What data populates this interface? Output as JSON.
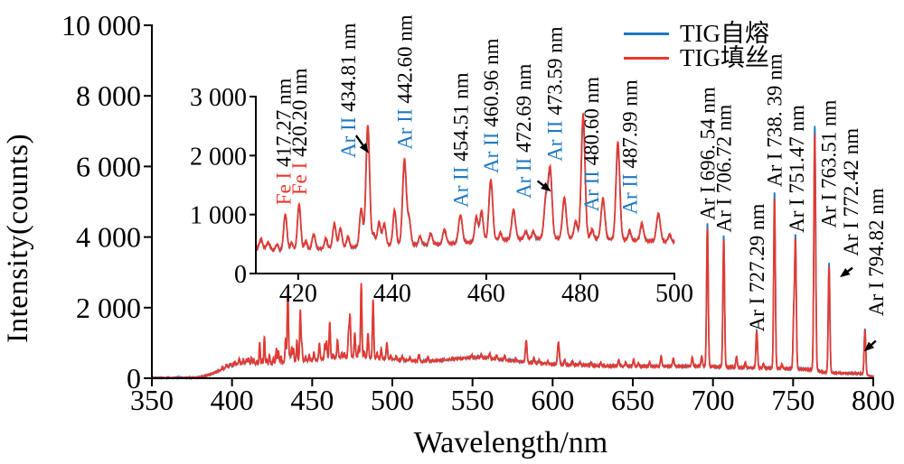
{
  "chart_data": {
    "type": "line",
    "title": "",
    "xlabel": "Wavelength/nm",
    "ylabel": "Intensity(counts)",
    "legend_position": "top-right",
    "grid": false,
    "series": [
      {
        "name": "TIG自熔",
        "color": "#1f78c1",
        "role": "blue"
      },
      {
        "name": "TIG填丝",
        "color": "#e8382e",
        "role": "red"
      }
    ],
    "main": {
      "xlim": [
        350,
        800
      ],
      "ylim": [
        0,
        10000
      ],
      "xticks": [
        350,
        400,
        450,
        500,
        550,
        600,
        650,
        700,
        750,
        800
      ],
      "xtick_labels": [
        "350",
        "400",
        "450",
        "500",
        "550",
        "600",
        "650",
        "700",
        "750",
        "800"
      ],
      "yticks": [
        0,
        2000,
        4000,
        6000,
        8000,
        10000
      ],
      "ytick_labels": [
        "0",
        "2 000",
        "4 000",
        "6 000",
        "8 000",
        "10 000"
      ],
      "annotations": [
        {
          "text": "Ar I 696. 54 nm",
          "x": 696.54,
          "dx": 0,
          "y": 4480
        },
        {
          "text": "Ar I 706.72 nm",
          "x": 706.72,
          "dx": 0,
          "y": 4130
        },
        {
          "text": "Ar I 727.29 nm",
          "x": 727.29,
          "dx": 0,
          "y": 1320
        },
        {
          "text": "Ar I 738. 39 nm",
          "x": 738.39,
          "dx": 0,
          "y": 5420
        },
        {
          "text": "Ar I 751.47 nm",
          "x": 751.47,
          "dx": 1,
          "y": 4120
        },
        {
          "text": "Ar I 763.51 nm",
          "x": 763.51,
          "dx": 15,
          "y": 4260
        },
        {
          "text": "Ar I 772.42 nm",
          "x": 772.42,
          "dx": 24,
          "y": 3460
        },
        {
          "text": "Ar I 794.82 nm",
          "x": 794.82,
          "dx": 12,
          "y": 1760
        }
      ],
      "arrows": [
        {
          "x": 772.42,
          "tail": [
            26,
            3130
          ],
          "head": [
            12,
            2860
          ]
        },
        {
          "x": 794.82,
          "tail": [
            12,
            1060
          ],
          "head": [
            -1,
            760
          ]
        }
      ]
    },
    "inset": {
      "xlim": [
        411,
        500
      ],
      "ylim": [
        0,
        3000
      ],
      "xticks": [
        420,
        440,
        460,
        480,
        500
      ],
      "xtick_labels": [
        "420",
        "440",
        "460",
        "480",
        "500"
      ],
      "yticks": [
        0,
        1000,
        2000,
        3000
      ],
      "ytick_labels": [
        "0",
        "1 000",
        "2 000",
        "3 000"
      ],
      "annotations": [
        {
          "element": "Fe I",
          "element_color": "#e8382e",
          "suffix": " 417.27 nm",
          "x": 417.27,
          "dx": -2,
          "y": 1160
        },
        {
          "element": "Fe I",
          "element_color": "#e8382e",
          "suffix": " 420.20 nm",
          "x": 420.2,
          "dx": 0,
          "y": 1330
        },
        {
          "element": "Ar II",
          "element_color": "#1f78c1",
          "suffix": " 434.81 nm",
          "x": 434.81,
          "dx": -22,
          "y": 1960
        },
        {
          "element": "Ar II",
          "element_color": "#1f78c1",
          "suffix": " 442.60 nm",
          "x": 442.6,
          "dx": 0,
          "y": 2100
        },
        {
          "element": "Ar II",
          "element_color": "#1f78c1",
          "suffix": " 454.51 nm",
          "x": 454.51,
          "dx": 0,
          "y": 1120
        },
        {
          "element": "Ar II",
          "element_color": "#1f78c1",
          "suffix": " 460.96 nm",
          "x": 460.96,
          "dx": 0,
          "y": 1700
        },
        {
          "element": "Ar II",
          "element_color": "#1f78c1",
          "suffix": " 472.69 nm",
          "x": 472.69,
          "dx": -25,
          "y": 1270
        },
        {
          "element": "Ar II",
          "element_color": "#1f78c1",
          "suffix": " 473.59 nm",
          "x": 473.59,
          "dx": 5,
          "y": 1900
        },
        {
          "element": "Ar II",
          "element_color": "#1f78c1",
          "suffix": " 480.60 nm",
          "x": 480.6,
          "dx": 9,
          "y": 1050
        },
        {
          "element": "Ar II",
          "element_color": "#1f78c1",
          "suffix": " 487.99 nm",
          "x": 487.99,
          "dx": 13,
          "y": 1000
        }
      ],
      "arrows": [
        {
          "x": 434.81,
          "tail": [
            -13,
            2340
          ],
          "head": [
            1,
            2040
          ]
        },
        {
          "x": 473.59,
          "tail": [
            -14,
            1570
          ],
          "head": [
            1,
            1390
          ]
        }
      ]
    },
    "baseline": [
      [
        350,
        14
      ],
      [
        370,
        17
      ],
      [
        378,
        24
      ],
      [
        383,
        60
      ],
      [
        388,
        140
      ],
      [
        393,
        230
      ],
      [
        398,
        330
      ],
      [
        403,
        400
      ],
      [
        408,
        430
      ],
      [
        412,
        418
      ],
      [
        416,
        390
      ],
      [
        420,
        400
      ],
      [
        425,
        420
      ],
      [
        430,
        440
      ],
      [
        436,
        468
      ],
      [
        442,
        480
      ],
      [
        448,
        492
      ],
      [
        454,
        520
      ],
      [
        460,
        558
      ],
      [
        466,
        584
      ],
      [
        472,
        596
      ],
      [
        478,
        600
      ],
      [
        484,
        590
      ],
      [
        490,
        570
      ],
      [
        496,
        552
      ],
      [
        500,
        540
      ],
      [
        506,
        512
      ],
      [
        512,
        490
      ],
      [
        518,
        480
      ],
      [
        525,
        492
      ],
      [
        532,
        516
      ],
      [
        540,
        556
      ],
      [
        548,
        580
      ],
      [
        554,
        585
      ],
      [
        560,
        566
      ],
      [
        566,
        540
      ],
      [
        572,
        510
      ],
      [
        578,
        476
      ],
      [
        584,
        450
      ],
      [
        592,
        420
      ],
      [
        600,
        400
      ],
      [
        610,
        380
      ],
      [
        620,
        366
      ],
      [
        632,
        350
      ],
      [
        645,
        340
      ],
      [
        658,
        335
      ],
      [
        670,
        335
      ],
      [
        682,
        340
      ],
      [
        690,
        345
      ],
      [
        698,
        332
      ],
      [
        706,
        320
      ],
      [
        715,
        306
      ],
      [
        724,
        296
      ],
      [
        734,
        286
      ],
      [
        744,
        276
      ],
      [
        754,
        262
      ],
      [
        762,
        242
      ],
      [
        766,
        205
      ],
      [
        769,
        165
      ],
      [
        772,
        152
      ],
      [
        776,
        146
      ],
      [
        782,
        141
      ],
      [
        788,
        138
      ],
      [
        792,
        134
      ],
      [
        796,
        95
      ],
      [
        798,
        62
      ],
      [
        800,
        40
      ]
    ],
    "peaks": [
      [
        394.0,
        60,
        0.35,
        0
      ],
      [
        396.5,
        95,
        0.35,
        0
      ],
      [
        399.0,
        75,
        0.35,
        0
      ],
      [
        401.5,
        85,
        0.35,
        0
      ],
      [
        404.5,
        150,
        0.35,
        0
      ],
      [
        407.0,
        115,
        0.35,
        0
      ],
      [
        409.0,
        105,
        0.35,
        0
      ],
      [
        410.2,
        145,
        0.35,
        0
      ],
      [
        412.1,
        165,
        0.35,
        1
      ],
      [
        413.6,
        125,
        0.35,
        1
      ],
      [
        415.5,
        95,
        0.3,
        1
      ],
      [
        417.27,
        620,
        0.35,
        1
      ],
      [
        418.6,
        120,
        0.3,
        1
      ],
      [
        420.2,
        780,
        0.35,
        1
      ],
      [
        421.6,
        145,
        0.3,
        1
      ],
      [
        423.3,
        255,
        0.35,
        1
      ],
      [
        425.9,
        170,
        0.3,
        1
      ],
      [
        427.7,
        420,
        0.35,
        1
      ],
      [
        429.0,
        330,
        0.35,
        1
      ],
      [
        430.6,
        190,
        0.3,
        1
      ],
      [
        433.4,
        650,
        0.35,
        1
      ],
      [
        434.81,
        2060,
        0.4,
        1
      ],
      [
        436.1,
        200,
        0.3,
        1
      ],
      [
        437.2,
        400,
        0.35,
        1
      ],
      [
        438.3,
        380,
        0.35,
        1
      ],
      [
        440.5,
        600,
        0.35,
        1
      ],
      [
        442.6,
        1460,
        0.4,
        1
      ],
      [
        443.6,
        420,
        0.35,
        1
      ],
      [
        445.9,
        140,
        0.3,
        1
      ],
      [
        448.2,
        185,
        0.35,
        1
      ],
      [
        451.1,
        240,
        0.35,
        1
      ],
      [
        454.51,
        470,
        0.4,
        1
      ],
      [
        457.9,
        420,
        0.35,
        1
      ],
      [
        459.0,
        510,
        0.35,
        1
      ],
      [
        460.96,
        1040,
        0.4,
        1
      ],
      [
        463.0,
        115,
        0.3,
        1
      ],
      [
        465.8,
        500,
        0.4,
        1
      ],
      [
        468.4,
        130,
        0.3,
        1
      ],
      [
        470.0,
        125,
        0.3,
        1
      ],
      [
        472.69,
        690,
        0.4,
        1
      ],
      [
        473.59,
        1160,
        0.4,
        1
      ],
      [
        476.6,
        690,
        0.4,
        1
      ],
      [
        479.0,
        290,
        0.35,
        1
      ],
      [
        480.6,
        2110,
        0.4,
        1
      ],
      [
        482.5,
        160,
        0.3,
        1
      ],
      [
        484.82,
        700,
        0.4,
        1
      ],
      [
        487.99,
        1660,
        0.4,
        1
      ],
      [
        490.5,
        155,
        0.3,
        1
      ],
      [
        493.1,
        290,
        0.35,
        1
      ],
      [
        496.6,
        470,
        0.4,
        1
      ],
      [
        499.0,
        125,
        0.3,
        1
      ],
      [
        502.4,
        90,
        0.35,
        0
      ],
      [
        506.2,
        115,
        0.4,
        0
      ],
      [
        511.0,
        95,
        0.4,
        0
      ],
      [
        516.6,
        195,
        0.45,
        0
      ],
      [
        522.3,
        115,
        0.4,
        0
      ],
      [
        549.5,
        75,
        0.4,
        0
      ],
      [
        555.5,
        95,
        0.4,
        0
      ],
      [
        560.7,
        145,
        0.45,
        0
      ],
      [
        565.1,
        115,
        0.4,
        0
      ],
      [
        570.2,
        115,
        0.4,
        0
      ],
      [
        577.0,
        75,
        0.4,
        0
      ],
      [
        583.5,
        620,
        0.5,
        0
      ],
      [
        588.3,
        145,
        0.4,
        0
      ],
      [
        591.5,
        95,
        0.4,
        0
      ],
      [
        597.0,
        65,
        0.4,
        0
      ],
      [
        603.6,
        620,
        0.55,
        0
      ],
      [
        607.5,
        145,
        0.4,
        0
      ],
      [
        612.3,
        105,
        0.4,
        0
      ],
      [
        617.2,
        85,
        0.4,
        0
      ],
      [
        624.0,
        75,
        0.4,
        0
      ],
      [
        630.0,
        75,
        0.4,
        0
      ],
      [
        641.2,
        175,
        0.45,
        0
      ],
      [
        645.6,
        115,
        0.4,
        0
      ],
      [
        650.5,
        195,
        0.45,
        0
      ],
      [
        653.5,
        95,
        0.4,
        0
      ],
      [
        660.5,
        115,
        0.4,
        0
      ],
      [
        667.7,
        285,
        0.45,
        0
      ],
      [
        675.3,
        235,
        0.45,
        0
      ],
      [
        687.1,
        245,
        0.45,
        0
      ],
      [
        693.0,
        285,
        0.45,
        0
      ],
      [
        696.54,
        4070,
        0.5,
        2
      ],
      [
        706.72,
        3730,
        0.5,
        2
      ],
      [
        714.7,
        300,
        0.45,
        0
      ],
      [
        720.2,
        150,
        0.4,
        0
      ],
      [
        727.29,
        1060,
        0.5,
        2
      ],
      [
        731.5,
        125,
        0.4,
        0
      ],
      [
        738.39,
        4980,
        0.5,
        2
      ],
      [
        743.0,
        125,
        0.4,
        0
      ],
      [
        750.39,
        1450,
        0.45,
        2
      ],
      [
        751.47,
        3720,
        0.5,
        2
      ],
      [
        763.51,
        6920,
        0.55,
        2
      ],
      [
        772.42,
        3120,
        0.5,
        2
      ],
      [
        794.82,
        1300,
        0.5,
        2
      ]
    ]
  }
}
